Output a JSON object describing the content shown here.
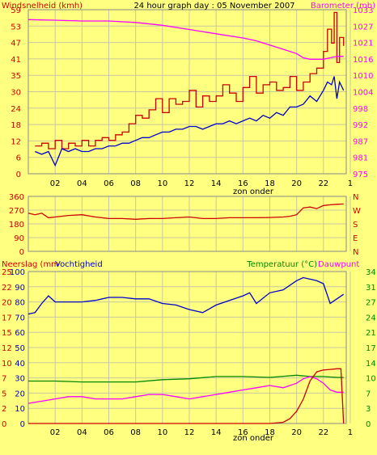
{
  "window": {
    "title": "24 hour graph day : 05 November 2007"
  },
  "colors": {
    "background": "#ffff80",
    "plot_background": "#ffff80",
    "grid": "#c8c8a0",
    "wind": "#cc0000",
    "gust": "#0000cc",
    "barometer": "#ff00ff",
    "direction": "#cc0000",
    "humidity": "#0000cc",
    "temperature": "#008800",
    "dewpoint": "#ff00ff",
    "rain": "#cc0000",
    "axis_left_top": "#cc0000",
    "axis_right_top": "#ff00ff",
    "axis_right_bottom": "#008800",
    "axis_left_bottom": "#cc0000"
  },
  "chart_data": [
    {
      "type": "line",
      "title": "24 hour graph day : 05 November 2007",
      "ylabel_left": "Windsnelheid (kmh)",
      "ylabel_right": "Barometer (mb)",
      "x_ticks": [
        "02",
        "04",
        "06",
        "08",
        "10",
        "12",
        "14",
        "16",
        "18",
        "20",
        "22",
        "1"
      ],
      "x_annotation": "zon onder",
      "y_ticks_left": [
        "0",
        "6",
        "12",
        "18",
        "24",
        "30",
        "35",
        "41",
        "47",
        "53",
        "59"
      ],
      "y_ticks_right": [
        "975",
        "981",
        "987",
        "992",
        "998",
        "1004",
        "1010",
        "1016",
        "1021",
        "1027",
        "1033"
      ],
      "ylim_left": [
        0,
        59
      ],
      "ylim_right": [
        975,
        1033
      ],
      "grid": true,
      "series": [
        {
          "key": "wind",
          "axis": "left",
          "x": [
            0.5,
            1,
            1.5,
            2,
            2.5,
            3,
            3.5,
            4,
            4.5,
            5,
            5.5,
            6,
            6.5,
            7,
            7.5,
            8,
            8.5,
            9,
            9.5,
            10,
            10.5,
            11,
            11.5,
            12,
            12.5,
            13,
            13.5,
            14,
            14.5,
            15,
            15.5,
            16,
            16.5,
            17,
            17.5,
            18,
            18.5,
            19,
            19.5,
            20,
            20.5,
            21,
            21.5,
            22,
            22.3,
            22.6,
            22.8,
            23,
            23.2,
            23.5
          ],
          "values": [
            10,
            11,
            9,
            12,
            9,
            11,
            10,
            12,
            10,
            12,
            13,
            12,
            14,
            15,
            18,
            21,
            20,
            23,
            27,
            22,
            27,
            25,
            26,
            30,
            24,
            28,
            26,
            28,
            32,
            29,
            26,
            31,
            35,
            29,
            32,
            33,
            30,
            31,
            35,
            30,
            33,
            36,
            38,
            44,
            52,
            47,
            58,
            40,
            49,
            46
          ]
        },
        {
          "key": "gust",
          "axis": "left",
          "x": [
            0.5,
            1,
            1.5,
            2,
            2.5,
            3,
            3.5,
            4,
            4.5,
            5,
            5.5,
            6,
            6.5,
            7,
            7.5,
            8,
            8.5,
            9,
            9.5,
            10,
            10.5,
            11,
            11.5,
            12,
            12.5,
            13,
            13.5,
            14,
            14.5,
            15,
            15.5,
            16,
            16.5,
            17,
            17.5,
            18,
            18.5,
            19,
            19.5,
            20,
            20.5,
            21,
            21.5,
            22,
            22.3,
            22.6,
            22.8,
            23,
            23.2,
            23.5
          ],
          "values": [
            8,
            7,
            8,
            3,
            9,
            8,
            9,
            8,
            8,
            9,
            9,
            10,
            10,
            11,
            11,
            12,
            13,
            13,
            14,
            15,
            15,
            16,
            16,
            17,
            17,
            16,
            17,
            18,
            18,
            19,
            18,
            19,
            20,
            19,
            21,
            20,
            22,
            21,
            24,
            24,
            25,
            28,
            26,
            30,
            33,
            32,
            35,
            27,
            33,
            30
          ]
        },
        {
          "key": "barometer",
          "axis": "right",
          "x": [
            0,
            2,
            4,
            6,
            8,
            10,
            12,
            14,
            16,
            17,
            18,
            19,
            20,
            20.5,
            21,
            21.5,
            22,
            22.5,
            23,
            23.5
          ],
          "values": [
            1029.5,
            1029.3,
            1029,
            1029,
            1028.5,
            1027.5,
            1026,
            1024.5,
            1023,
            1022,
            1020.5,
            1019,
            1017.5,
            1016,
            1015.5,
            1015.5,
            1015.5,
            1016,
            1016.5,
            1016.5
          ]
        }
      ]
    },
    {
      "type": "line",
      "y_ticks_left": [
        "360",
        "270",
        "180",
        "90",
        "0"
      ],
      "y_ticks_right": [
        "N",
        "W",
        "S",
        "E",
        "N"
      ],
      "ylim": [
        0,
        360
      ],
      "grid": true,
      "series": [
        {
          "key": "direction",
          "x": [
            0,
            0.5,
            1,
            1.5,
            2,
            3,
            4,
            5,
            6,
            7,
            8,
            9,
            10,
            11,
            12,
            13,
            14,
            15,
            16,
            17,
            18,
            19,
            19.5,
            20,
            20.5,
            21,
            21.5,
            22,
            22.5,
            23,
            23.5
          ],
          "values": [
            250,
            240,
            250,
            220,
            225,
            235,
            240,
            225,
            215,
            215,
            210,
            215,
            215,
            220,
            225,
            215,
            215,
            220,
            220,
            220,
            222,
            225,
            230,
            240,
            285,
            290,
            280,
            300,
            305,
            308,
            310
          ]
        }
      ]
    },
    {
      "type": "line",
      "ylabel_left": "Neerslag (mm",
      "ylabel_left2": "Vochtigheid",
      "ylabel_right": "Temperatuur (°C)",
      "ylabel_right2": "Dauwpunt",
      "x_ticks": [
        "02",
        "04",
        "06",
        "08",
        "10",
        "12",
        "14",
        "16",
        "18",
        "20",
        "22",
        "1"
      ],
      "x_annotation": "zon onder",
      "y_ticks_left_rain": [
        "0",
        "2",
        "5",
        "7",
        "10",
        "12",
        "15",
        "17",
        "20",
        "22",
        "25"
      ],
      "y_ticks_left_humidity": [
        "0",
        "10",
        "20",
        "30",
        "40",
        "50",
        "60",
        "70",
        "80",
        "90",
        "100"
      ],
      "y_ticks_right": [
        "0",
        "3",
        "7",
        "10",
        "14",
        "17",
        "21",
        "24",
        "27",
        "31",
        "34"
      ],
      "ylim_humidity": [
        0,
        100
      ],
      "ylim_temperature": [
        0,
        34
      ],
      "ylim_rain": [
        0,
        25
      ],
      "grid": true,
      "series": [
        {
          "key": "humidity",
          "axis": "humidity",
          "x": [
            0,
            0.5,
            1,
            1.5,
            2,
            3,
            4,
            5,
            6,
            7,
            8,
            9,
            10,
            11,
            12,
            13,
            14,
            15,
            16,
            16.5,
            17,
            18,
            19,
            20,
            20.5,
            21,
            21.5,
            22,
            22.5,
            23,
            23.5
          ],
          "values": [
            72,
            73,
            79,
            84,
            80,
            80,
            80,
            81,
            83,
            83,
            82,
            82,
            79,
            78,
            75,
            73,
            78,
            81,
            84,
            86,
            79,
            86,
            88,
            94,
            96,
            95,
            94,
            92,
            79,
            82,
            85
          ]
        },
        {
          "key": "temperature",
          "axis": "temperature",
          "x": [
            0,
            2,
            4,
            6,
            8,
            10,
            12,
            14,
            16,
            18,
            20,
            21,
            22,
            23,
            23.5
          ],
          "values": [
            9.5,
            9.5,
            9.3,
            9.3,
            9.3,
            9.8,
            10,
            10.5,
            10.5,
            10.3,
            10.8,
            10.5,
            10.5,
            10.3,
            10.3
          ]
        },
        {
          "key": "dewpoint",
          "axis": "temperature",
          "x": [
            0,
            1,
            2,
            3,
            4,
            5,
            6,
            7,
            8,
            9,
            10,
            11,
            12,
            13,
            14,
            15,
            16,
            17,
            18,
            19,
            20,
            20.5,
            21,
            21.5,
            22,
            22.5,
            23,
            23.5
          ],
          "values": [
            4.5,
            5,
            5.5,
            6,
            6,
            5.5,
            5.5,
            5.5,
            6,
            6.5,
            6.5,
            6,
            5.5,
            6,
            6.5,
            7,
            7.5,
            8,
            8.5,
            8,
            9,
            10,
            10.5,
            10,
            9,
            7.5,
            7,
            7
          ]
        },
        {
          "key": "rain",
          "axis": "rain",
          "x": [
            0,
            18,
            19,
            19.5,
            20,
            20.5,
            21,
            21.5,
            22,
            22.5,
            23,
            23.3,
            23.5
          ],
          "values": [
            0,
            0,
            0.2,
            0.8,
            2,
            4,
            7,
            8.5,
            8.8,
            8.9,
            9,
            9,
            0
          ]
        }
      ]
    }
  ]
}
